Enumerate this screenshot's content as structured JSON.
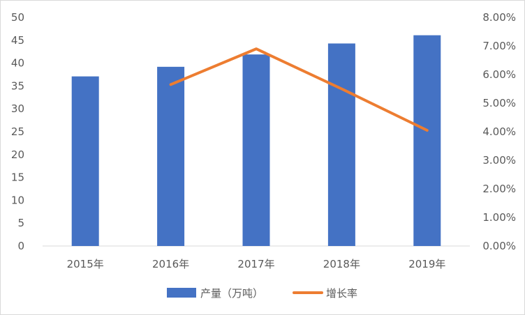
{
  "chart_data": {
    "type": "bar",
    "categories": [
      "2015年",
      "2016年",
      "2017年",
      "2018年",
      "2019年"
    ],
    "series": [
      {
        "name": "产量（万吨）",
        "type": "bar",
        "axis": "left",
        "values": [
          37.1,
          39.2,
          41.9,
          44.3,
          46.1
        ],
        "color": "#4472C4"
      },
      {
        "name": "增长率",
        "type": "line",
        "axis": "right",
        "values": [
          null,
          0.0565,
          0.069,
          0.055,
          0.0405
        ],
        "color": "#ED7D31"
      }
    ],
    "y_left": {
      "ylim": [
        0,
        50
      ],
      "ticks": [
        0,
        5,
        10,
        15,
        20,
        25,
        30,
        35,
        40,
        45,
        50
      ],
      "tick_labels": [
        "0",
        "5",
        "10",
        "15",
        "20",
        "25",
        "30",
        "35",
        "40",
        "45",
        "50"
      ]
    },
    "y_right": {
      "ylim": [
        0,
        0.08
      ],
      "ticks": [
        0,
        0.01,
        0.02,
        0.03,
        0.04,
        0.05,
        0.06,
        0.07,
        0.08
      ],
      "tick_labels": [
        "0.00%",
        "1.00%",
        "2.00%",
        "3.00%",
        "4.00%",
        "5.00%",
        "6.00%",
        "7.00%",
        "8.00%"
      ]
    },
    "grid": false,
    "legend": "bottom",
    "title": "",
    "xlabel": "",
    "ylabel": ""
  }
}
